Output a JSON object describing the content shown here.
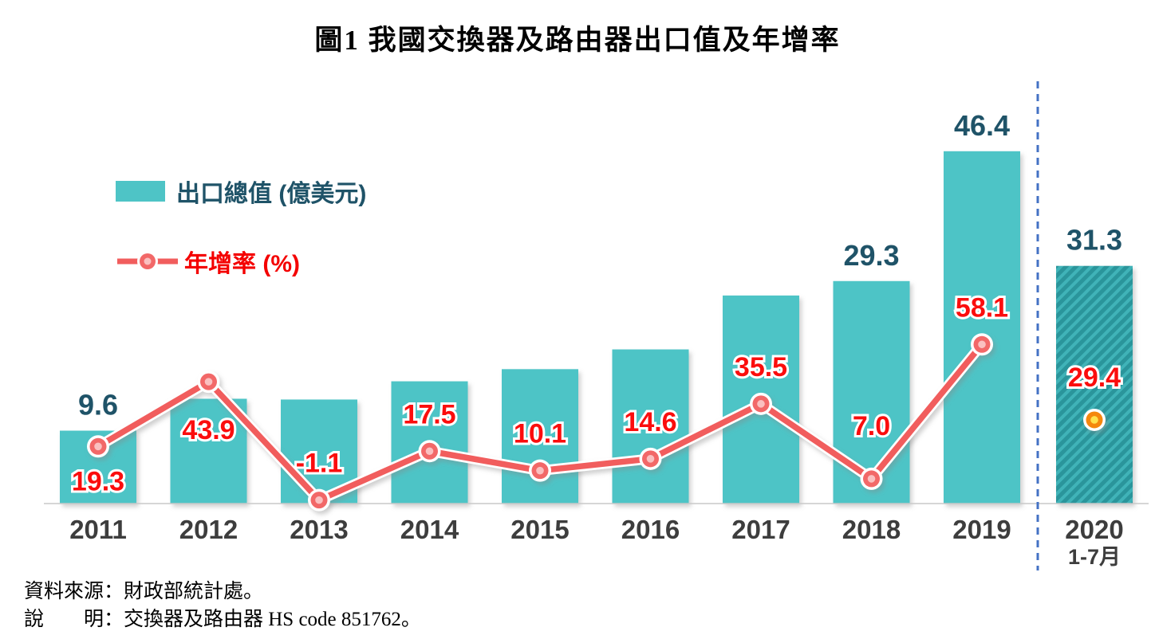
{
  "figure": {
    "title": "圖1  我國交換器及路由器出口值及年增率"
  },
  "legend": {
    "bar_series_label": "出口總值 (億美元)",
    "line_series_label": "年增率 (%)"
  },
  "footer": {
    "source_line": "資料來源：財政部統計處。",
    "note_line": "說　　明：交換器及路由器 HS code 851762。"
  },
  "colors": {
    "bar_fill": "#4ec4c6",
    "bar_2020_fill": "#3fb3b8",
    "bar_2020_hatch": "#2b959b",
    "bar_value_label": "#1f5368",
    "line_stroke": "#f15d5d",
    "line_value_label": "#fb0d0d",
    "marker_fill": "#f26868",
    "marker_center": "#fac0c0",
    "marker_2020_fill": "#f5870f",
    "marker_2020_center": "#ffe14d",
    "separator_line": "#4472c4",
    "axis_line": "#c9c9c9",
    "axis_label": "#3d3d3d"
  },
  "chart_data": {
    "type": "bar+line",
    "title": "圖1  我國交換器及路由器出口值及年增率",
    "legend_position": "upper-left-inside",
    "grid": false,
    "value_axes_visible": false,
    "separator_after_index": 8,
    "categories": [
      {
        "label": "2011"
      },
      {
        "label": "2012"
      },
      {
        "label": "2013"
      },
      {
        "label": "2014"
      },
      {
        "label": "2015"
      },
      {
        "label": "2016"
      },
      {
        "label": "2017"
      },
      {
        "label": "2018"
      },
      {
        "label": "2019"
      },
      {
        "label": "2020",
        "sublabel": "1-7月"
      }
    ],
    "series": [
      {
        "name": "出口總值 (億美元)",
        "type": "bar",
        "values": [
          9.6,
          13.8,
          13.7,
          16.1,
          17.7,
          20.3,
          27.4,
          29.3,
          46.4,
          31.3
        ],
        "data_labels": [
          "9.6",
          null,
          null,
          null,
          null,
          null,
          null,
          "29.3",
          "46.4",
          "31.3"
        ],
        "note": "unlabeled bar values estimated from bar heights and growth rates"
      },
      {
        "name": "年增率 (%)",
        "type": "line",
        "values": [
          19.3,
          43.9,
          -1.1,
          17.5,
          10.1,
          14.6,
          35.5,
          7.0,
          58.1,
          29.4
        ],
        "data_labels": [
          "19.3",
          "43.9",
          "-1.1",
          "17.5",
          "10.1",
          "14.6",
          "35.5",
          "7.0",
          "58.1",
          "29.4"
        ],
        "last_point_isolated": true
      }
    ]
  }
}
